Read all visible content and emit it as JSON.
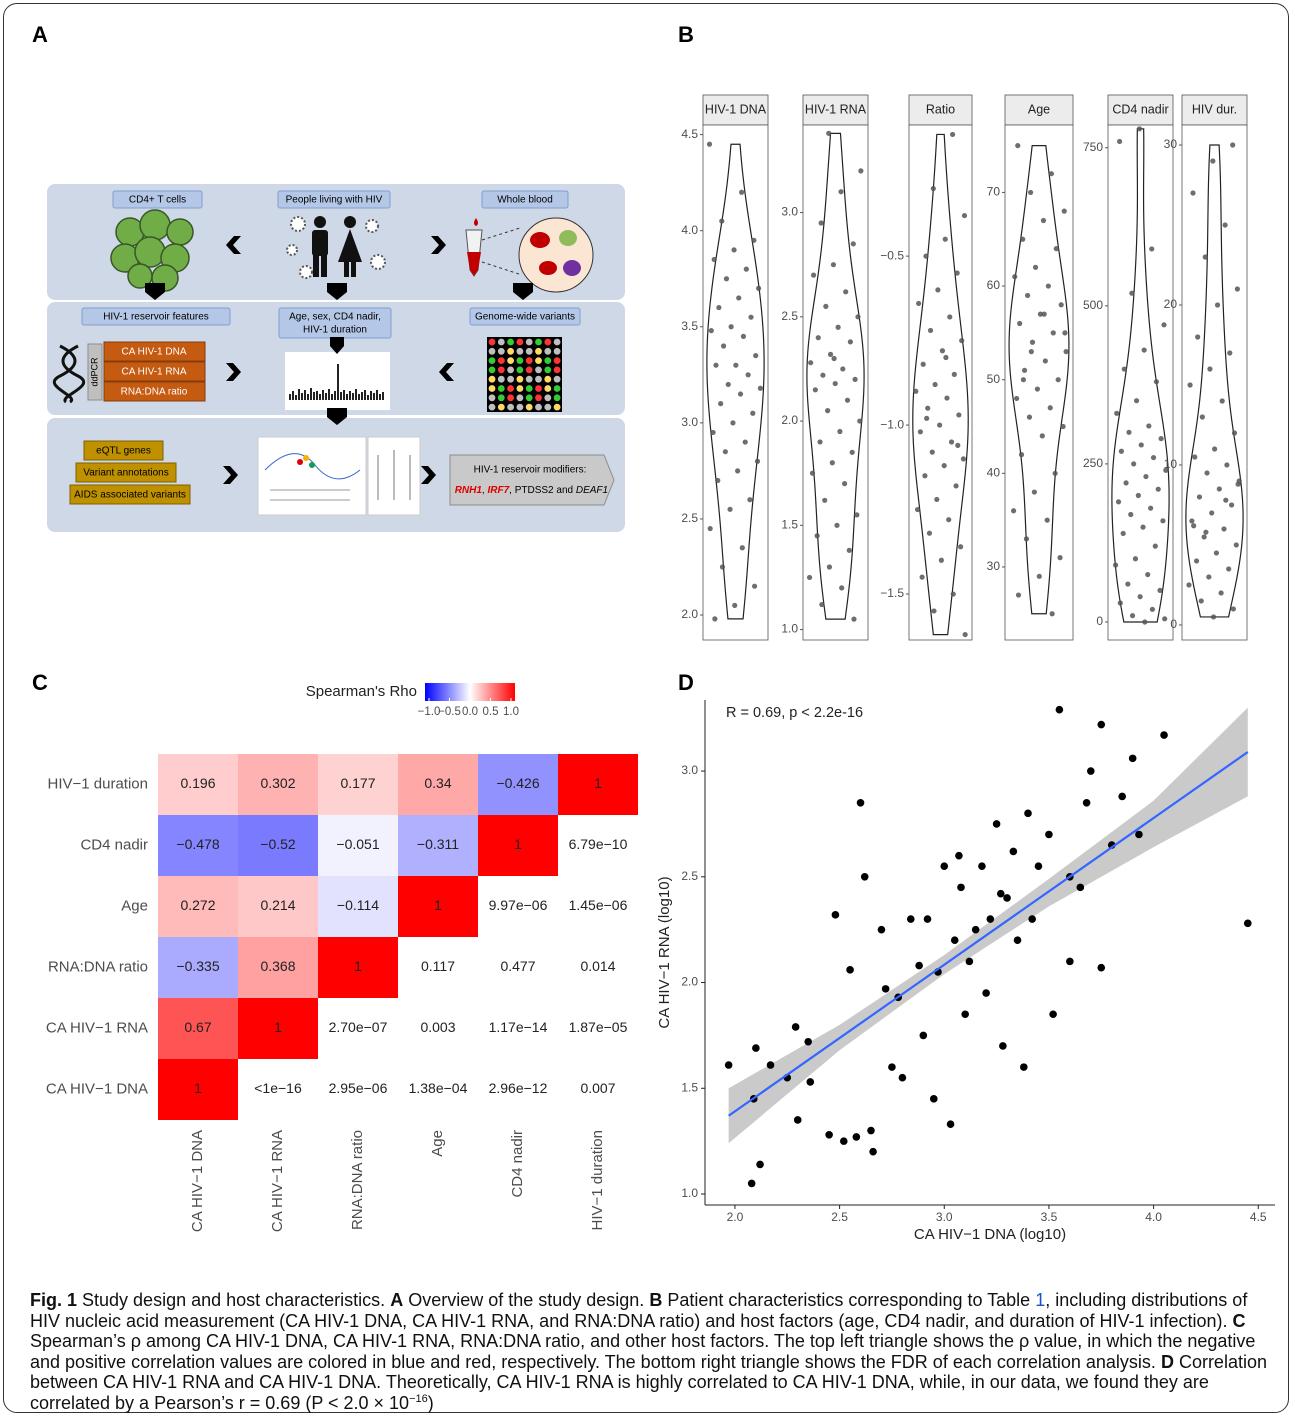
{
  "figure_labels": [
    "A",
    "B",
    "C",
    "D"
  ],
  "panel_a": {
    "top_labels": [
      "CD4+ T cells",
      "People living with HIV",
      "Whole blood"
    ],
    "middle_labels": [
      "HIV-1 reservoir features",
      "Age, sex, CD4 nadir,",
      "HIV-1 duration",
      "Genome-wide variants"
    ],
    "measurements": [
      "CA HIV-1 DNA",
      "CA HIV-1 RNA",
      "RNA:DNA ratio"
    ],
    "method": "ddPCR",
    "annotations": [
      "eQTL genes",
      "Variant annotations",
      "AIDS associated variants"
    ],
    "result_title": "HIV-1 reservoir modifiers:",
    "result_parts": [
      "RNH1",
      ", ",
      "IRF7",
      ", PTDSS2 and ",
      "DEAF1"
    ]
  },
  "chart_data": [
    {
      "type": "violin",
      "point_color": "#555555",
      "line_color": "#222222",
      "facets": [
        {
          "title": "HIV-1 DNA",
          "ylim": [
            1.87,
            4.55
          ],
          "yticks": [
            {
              "value": 2.0,
              "label": "2.0"
            },
            {
              "value": 2.5,
              "label": "2.5"
            },
            {
              "value": 3.0,
              "label": "3.0"
            },
            {
              "value": 3.5,
              "label": "3.5"
            },
            {
              "value": 4.0,
              "label": "4.0"
            },
            {
              "value": 4.5,
              "label": "4.5"
            }
          ],
          "values": [
            4.45,
            4.2,
            4.05,
            3.95,
            3.9,
            3.85,
            3.8,
            3.75,
            3.7,
            3.65,
            3.6,
            3.55,
            3.5,
            3.48,
            3.45,
            3.4,
            3.35,
            3.3,
            3.3,
            3.25,
            3.2,
            3.18,
            3.15,
            3.1,
            3.05,
            3.0,
            2.95,
            2.9,
            2.85,
            2.8,
            2.75,
            2.7,
            2.6,
            2.55,
            2.45,
            2.35,
            2.25,
            2.15,
            2.05,
            1.98
          ]
        },
        {
          "title": "HIV-1 RNA",
          "ylim": [
            0.95,
            3.42
          ],
          "yticks": [
            {
              "value": 1.0,
              "label": "1.0"
            },
            {
              "value": 1.5,
              "label": "1.5"
            },
            {
              "value": 2.0,
              "label": "2.0"
            },
            {
              "value": 2.5,
              "label": "2.5"
            },
            {
              "value": 3.0,
              "label": "3.0"
            }
          ],
          "values": [
            3.38,
            3.2,
            3.1,
            2.95,
            2.85,
            2.75,
            2.7,
            2.62,
            2.55,
            2.5,
            2.45,
            2.4,
            2.38,
            2.32,
            2.28,
            2.25,
            2.22,
            2.2,
            2.18,
            2.15,
            2.1,
            2.05,
            2.0,
            1.95,
            1.9,
            1.85,
            1.8,
            1.75,
            1.7,
            1.62,
            1.55,
            1.5,
            1.45,
            1.38,
            1.3,
            1.25,
            1.2,
            1.12,
            1.05,
            2.3
          ]
        },
        {
          "title": "Ratio",
          "ylim": [
            -1.636,
            -0.112
          ],
          "yticks": [
            {
              "value": -1.5,
              "label": "−1.5"
            },
            {
              "value": -1.0,
              "label": "−1.0"
            },
            {
              "value": -0.5,
              "label": "−0.5"
            }
          ],
          "values": [
            -0.14,
            -0.3,
            -0.38,
            -0.45,
            -0.5,
            -0.55,
            -0.6,
            -0.64,
            -0.68,
            -0.72,
            -0.75,
            -0.78,
            -0.82,
            -0.85,
            -0.88,
            -0.9,
            -0.92,
            -0.95,
            -0.97,
            -1.0,
            -1.02,
            -1.05,
            -1.08,
            -1.1,
            -1.12,
            -1.15,
            -1.18,
            -1.22,
            -1.25,
            -1.28,
            -1.32,
            -1.36,
            -1.4,
            -1.45,
            -1.5,
            -1.55,
            -1.62,
            -0.8,
            -0.98,
            -1.06
          ]
        },
        {
          "title": "Age",
          "ylim": [
            22.2,
            77.2
          ],
          "yticks": [
            30,
            40,
            50,
            60,
            70
          ],
          "values": [
            75,
            72,
            70,
            68,
            67,
            65,
            64,
            62,
            61,
            60,
            59,
            58,
            57,
            56,
            55,
            54,
            53,
            52,
            51,
            50,
            49,
            48,
            47,
            46,
            45,
            44,
            42,
            40,
            38,
            36,
            35,
            33,
            31,
            29,
            27,
            25,
            53,
            55,
            57,
            50
          ]
        },
        {
          "title": "CD4 nadir",
          "ylim": [
            -28.5,
            786
          ],
          "yticks": [
            0,
            250,
            500,
            750
          ],
          "values": [
            780,
            760,
            590,
            520,
            470,
            430,
            400,
            380,
            350,
            330,
            310,
            300,
            290,
            280,
            270,
            260,
            250,
            240,
            230,
            220,
            210,
            200,
            190,
            180,
            170,
            160,
            150,
            140,
            120,
            100,
            90,
            75,
            60,
            50,
            40,
            30,
            20,
            10,
            5,
            0
          ]
        },
        {
          "title": "HIV dur.",
          "ylim": [
            -0.94,
            31.25
          ],
          "yticks": [
            0,
            10,
            20,
            30
          ],
          "values": [
            30,
            29,
            27,
            25,
            23,
            21,
            20,
            18,
            17,
            16,
            15,
            14,
            13,
            12,
            11,
            10.5,
            10,
            9.5,
            9,
            8.5,
            8,
            7.5,
            7,
            6.5,
            6,
            5.5,
            5,
            4.5,
            4,
            3.5,
            3,
            2.5,
            2,
            1.5,
            1,
            0.5,
            6.2,
            7.8,
            5.8,
            8.8
          ]
        }
      ]
    },
    {
      "type": "heatmap",
      "legend_title": "Spearman's Rho",
      "clim": [
        -1,
        1
      ],
      "colors": [
        "#0000ff",
        "#ffffff",
        "#ff0000"
      ],
      "colorbar_ticks": [
        {
          "value": -1.0,
          "label": "−1.0"
        },
        {
          "value": -0.5,
          "label": "−0.5"
        },
        {
          "value": 0.0,
          "label": "0.0"
        },
        {
          "value": 0.5,
          "label": "0.5"
        },
        {
          "value": 1.0,
          "label": "1.0"
        }
      ],
      "rows": [
        "HIV−1 duration",
        "CD4 nadir",
        "Age",
        "RNA:DNA ratio",
        "CA HIV−1 RNA",
        "CA HIV−1 DNA"
      ],
      "columns": [
        "CA HIV−1 DNA",
        "CA HIV−1 RNA",
        "RNA:DNA ratio",
        "Age",
        "CD4 nadir",
        "HIV−1 duration"
      ],
      "values": [
        [
          0.196,
          0.302,
          0.177,
          0.34,
          -0.426,
          1
        ],
        [
          -0.478,
          -0.52,
          -0.051,
          -0.311,
          1,
          null
        ],
        [
          0.272,
          0.214,
          -0.114,
          1,
          null,
          null
        ],
        [
          -0.335,
          0.368,
          1,
          null,
          null,
          null
        ],
        [
          0.67,
          1,
          null,
          null,
          null,
          null
        ],
        [
          1,
          null,
          null,
          null,
          null,
          null
        ]
      ],
      "value_labels": [
        [
          "0.196",
          "0.302",
          "0.177",
          "0.34",
          "−0.426",
          "1"
        ],
        [
          "−0.478",
          "−0.52",
          "−0.051",
          "−0.311",
          "1",
          null
        ],
        [
          "0.272",
          "0.214",
          "−0.114",
          "1",
          null,
          null
        ],
        [
          "−0.335",
          "0.368",
          "1",
          null,
          null,
          null
        ],
        [
          "0.67",
          "1",
          null,
          null,
          null,
          null
        ],
        [
          "1",
          null,
          null,
          null,
          null,
          null
        ]
      ],
      "fdr_labels": [
        [
          null,
          null,
          null,
          null,
          null,
          null
        ],
        [
          null,
          null,
          null,
          null,
          null,
          "6.79e−10"
        ],
        [
          null,
          null,
          null,
          null,
          "9.97e−06",
          "1.45e−06"
        ],
        [
          null,
          null,
          null,
          "0.117",
          "0.477",
          "0.014"
        ],
        [
          null,
          null,
          "2.70e−07",
          "0.003",
          "1.17e−14",
          "1.87e−05"
        ],
        [
          null,
          "<1e−16",
          "2.95e−06",
          "1.38e−04",
          "2.96e−12",
          "0.007"
        ]
      ]
    },
    {
      "type": "scatter",
      "annotation": "R = 0.69, p < 2.2e-16",
      "xlabel": "CA HIV−1 DNA (log10)",
      "ylabel": "CA HIV−1 RNA (log10)",
      "color": "#000000",
      "fit_color": "#3366ff",
      "band_color": "#bdbdbd",
      "xlim": [
        1.857,
        4.58
      ],
      "ylim": [
        0.948,
        3.336
      ],
      "xticks": [
        {
          "value": 2.0,
          "label": "2.0"
        },
        {
          "value": 2.5,
          "label": "2.5"
        },
        {
          "value": 3.0,
          "label": "3.0"
        },
        {
          "value": 3.5,
          "label": "3.5"
        },
        {
          "value": 4.0,
          "label": "4.0"
        },
        {
          "value": 4.5,
          "label": "4.5"
        }
      ],
      "yticks": [
        {
          "value": 1.0,
          "label": "1.0"
        },
        {
          "value": 1.5,
          "label": "1.5"
        },
        {
          "value": 2.0,
          "label": "2.0"
        },
        {
          "value": 2.5,
          "label": "2.5"
        },
        {
          "value": 3.0,
          "label": "3.0"
        }
      ],
      "x": [
        1.97,
        2.08,
        2.09,
        2.1,
        2.12,
        2.17,
        2.25,
        2.29,
        2.3,
        2.35,
        2.36,
        2.45,
        2.52,
        2.58,
        2.6,
        2.62,
        2.65,
        2.66,
        2.7,
        2.72,
        2.75,
        2.78,
        2.8,
        2.84,
        2.88,
        2.9,
        2.92,
        2.95,
        2.97,
        3.0,
        3.03,
        3.05,
        3.08,
        3.1,
        3.12,
        3.15,
        3.18,
        3.2,
        3.22,
        3.25,
        3.28,
        3.3,
        3.33,
        3.35,
        3.38,
        3.4,
        3.42,
        3.45,
        3.5,
        3.52,
        3.55,
        3.6,
        3.65,
        3.68,
        3.7,
        3.75,
        3.8,
        3.85,
        3.9,
        3.93,
        4.05,
        4.45,
        2.55,
        2.48,
        3.07,
        3.27,
        3.6,
        3.75
      ],
      "y": [
        1.61,
        1.05,
        1.45,
        1.69,
        1.14,
        1.61,
        1.55,
        1.79,
        1.35,
        1.72,
        1.53,
        1.28,
        1.25,
        1.27,
        2.85,
        2.5,
        1.3,
        1.2,
        2.25,
        1.97,
        1.6,
        1.93,
        1.55,
        2.3,
        2.08,
        1.75,
        2.3,
        1.45,
        2.05,
        2.55,
        1.33,
        2.2,
        2.45,
        1.85,
        2.1,
        2.25,
        2.55,
        1.95,
        2.3,
        2.75,
        1.7,
        2.4,
        2.62,
        2.2,
        1.6,
        2.8,
        2.3,
        2.55,
        2.7,
        1.85,
        3.29,
        2.5,
        2.45,
        2.85,
        3.0,
        3.22,
        2.65,
        2.88,
        3.06,
        2.7,
        3.17,
        2.28,
        2.06,
        2.32,
        2.6,
        2.42,
        2.1,
        2.07
      ],
      "fit": {
        "x": [
          1.97,
          4.45
        ],
        "y": [
          1.37,
          3.09
        ]
      },
      "band": {
        "x": [
          1.97,
          2.5,
          3.0,
          3.5,
          4.0,
          4.45
        ],
        "lower": [
          1.24,
          1.68,
          2.04,
          2.36,
          2.64,
          2.88
        ],
        "upper": [
          1.5,
          1.8,
          2.13,
          2.49,
          2.86,
          3.3
        ]
      }
    }
  ],
  "caption": {
    "segments": [
      {
        "text": "Fig. 1",
        "style": "bold"
      },
      {
        "text": " Study design and host characteristics. ",
        "style": "text"
      },
      {
        "text": "A",
        "style": "bold"
      },
      {
        "text": " Overview of the study design. ",
        "style": "text"
      },
      {
        "text": "B",
        "style": "bold"
      },
      {
        "text": " Patient characteristics corresponding to Table ",
        "style": "text"
      },
      {
        "text": "1",
        "style": "link"
      },
      {
        "text": ", including distributions of HIV nucleic acid measurement (CA HIV-1 DNA, CA HIV-1 RNA, and RNA:DNA ratio) and host factors (age, CD4 nadir, and duration of HIV-1 infection). ",
        "style": "text"
      },
      {
        "text": "C",
        "style": "bold"
      },
      {
        "text": " Spearman’s ρ among CA HIV-1 DNA, CA HIV-1 RNA, RNA:DNA ratio, and other host factors. The top left triangle shows the ρ value, in which the negative and positive correlation values are colored in blue and red, respectively. The bottom right triangle shows the FDR of each correlation analysis. ",
        "style": "text"
      },
      {
        "text": "D",
        "style": "bold"
      },
      {
        "text": " Correlation between CA HIV-1 RNA and CA HIV-1 DNA. Theoretically, CA HIV-1 RNA is highly correlated to CA HIV-1 DNA, while, in our data, we found they are correlated by a Pearson’s r = 0.69 (P < 2.0 × 10",
        "style": "text"
      },
      {
        "text": "−16",
        "style": "sup"
      },
      {
        "text": ")",
        "style": "text"
      }
    ]
  }
}
